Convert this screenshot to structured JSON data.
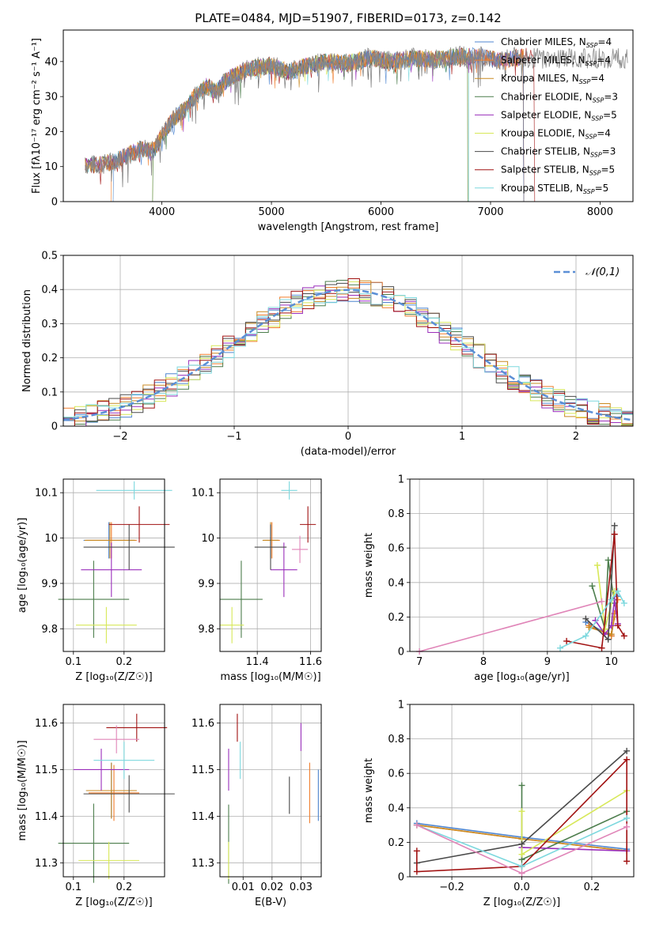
{
  "figure": {
    "title": "PLATE=0484, MJD=51907, FIBERID=0173, z=0.142"
  },
  "models": [
    {
      "name": "Chabrier MILES",
      "nssp": "4",
      "color": "#4f86d0"
    },
    {
      "name": "Salpeter MILES",
      "nssp": "4",
      "color": "#f07c2a"
    },
    {
      "name": "Kroupa MILES",
      "nssp": "4",
      "color": "#c98a22"
    },
    {
      "name": "Chabrier ELODIE",
      "nssp": "3",
      "color": "#4c7d4c"
    },
    {
      "name": "Salpeter ELODIE",
      "nssp": "5",
      "color": "#9a2fbb"
    },
    {
      "name": "Kroupa ELODIE",
      "nssp": "4",
      "color": "#d7e858"
    },
    {
      "name": "Chabrier STELIB",
      "nssp": "3",
      "color": "#4a4a4a"
    },
    {
      "name": "Salpeter STELIB",
      "nssp": "5",
      "color": "#a11212"
    },
    {
      "name": "Kroupa STELIB",
      "nssp": "5",
      "color": "#7dd8de"
    }
  ],
  "chart_data": [
    {
      "id": "spectrum",
      "type": "line",
      "xlabel": "wavelength [Angstrom, rest frame]",
      "ylabel": "Flux [fλ10⁻¹⁷ erg cm⁻² s⁻¹ A⁻¹]",
      "xlim": [
        3100,
        8300
      ],
      "ylim": [
        0,
        49
      ],
      "xticks": [
        4000,
        5000,
        6000,
        7000,
        8000
      ],
      "yticks": [
        0,
        10,
        20,
        30,
        40
      ],
      "grid": false,
      "legend": "right",
      "anchors": [
        [
          3300,
          10.5
        ],
        [
          3450,
          10.5
        ],
        [
          3600,
          12
        ],
        [
          3800,
          15
        ],
        [
          3920,
          14.5
        ],
        [
          4000,
          19
        ],
        [
          4100,
          23.5
        ],
        [
          4200,
          26
        ],
        [
          4300,
          30
        ],
        [
          4400,
          33
        ],
        [
          4500,
          31.5
        ],
        [
          4600,
          35
        ],
        [
          4800,
          38
        ],
        [
          5000,
          39
        ],
        [
          5150,
          37
        ],
        [
          5300,
          38.5
        ],
        [
          5500,
          40
        ],
        [
          5700,
          39.5
        ],
        [
          5900,
          41
        ],
        [
          6100,
          40
        ],
        [
          6300,
          41
        ],
        [
          6500,
          40.5
        ],
        [
          6700,
          41.5
        ],
        [
          6900,
          41.5
        ],
        [
          7100,
          40
        ],
        [
          7200,
          41
        ],
        [
          7300,
          41.5
        ]
      ],
      "observed_end": 8250
    },
    {
      "id": "residuals",
      "type": "histogram",
      "xlabel": "(data-model)/error",
      "ylabel": "Normed distribution",
      "xlim": [
        -2.5,
        2.5
      ],
      "ylim": [
        0,
        0.5
      ],
      "xticks": [
        -2,
        -1,
        0,
        1,
        2
      ],
      "xtick_labels": [
        "−2",
        "−1",
        "0",
        "1",
        "2"
      ],
      "yticks": [
        0,
        0.1,
        0.2,
        0.3,
        0.4,
        0.5
      ],
      "grid": true,
      "bin_width": 0.1,
      "reference_label": "𝒩(0,1)",
      "reference_color": "#5b8fd6",
      "legend": "top-right"
    },
    {
      "id": "age_vs_Z",
      "type": "errorbar",
      "xlabel": "Z [log₁₀(Z/Z☉)]",
      "ylabel": "age  [log₁₀(age/yr)]",
      "xlim": [
        0.08,
        0.28
      ],
      "ylim": [
        9.75,
        10.13
      ],
      "xticks": [
        0.1,
        0.2
      ],
      "yticks": [
        9.8,
        9.9,
        10.0,
        10.1
      ],
      "grid": true,
      "points": [
        {
          "x": 0.17,
          "y": 9.995,
          "xerr": 0.05,
          "yerr": 0.04,
          "model": 0
        },
        {
          "x": 0.175,
          "y": 9.995,
          "xerr": 0.05,
          "yerr": 0.04,
          "model": 1
        },
        {
          "x": 0.172,
          "y": 9.995,
          "xerr": 0.05,
          "yerr": 0.04,
          "model": 2
        },
        {
          "x": 0.14,
          "y": 9.865,
          "xerr": 0.07,
          "yerr": 0.085,
          "model": 3
        },
        {
          "x": 0.175,
          "y": 9.93,
          "xerr": 0.06,
          "yerr": 0.06,
          "model": 4
        },
        {
          "x": 0.165,
          "y": 9.808,
          "xerr": 0.06,
          "yerr": 0.04,
          "model": 5
        },
        {
          "x": 0.21,
          "y": 9.98,
          "xerr": 0.09,
          "yerr": 0.05,
          "model": 6
        },
        {
          "x": 0.23,
          "y": 10.03,
          "xerr": 0.06,
          "yerr": 0.04,
          "model": 7
        },
        {
          "x": 0.22,
          "y": 10.105,
          "xerr": 0.075,
          "yerr": 0.02,
          "model": 8
        }
      ]
    },
    {
      "id": "age_vs_mass",
      "type": "errorbar",
      "xlabel": "mass [log₁₀(M/M☉)]",
      "ylabel": "",
      "xlim": [
        11.26,
        11.64
      ],
      "ylim": [
        9.75,
        10.13
      ],
      "xticks": [
        11.4,
        11.6
      ],
      "yticks": [
        9.8,
        9.9,
        10.0,
        10.1
      ],
      "grid": true,
      "points": [
        {
          "x": 11.45,
          "y": 9.995,
          "xerr": 0.03,
          "yerr": 0.04,
          "model": 0
        },
        {
          "x": 11.455,
          "y": 9.995,
          "xerr": 0.03,
          "yerr": 0.04,
          "model": 1
        },
        {
          "x": 11.45,
          "y": 9.995,
          "xerr": 0.03,
          "yerr": 0.04,
          "model": 2
        },
        {
          "x": 11.34,
          "y": 9.865,
          "xerr": 0.08,
          "yerr": 0.085,
          "model": 3
        },
        {
          "x": 11.5,
          "y": 9.93,
          "xerr": 0.05,
          "yerr": 0.06,
          "model": 4
        },
        {
          "x": 11.305,
          "y": 9.808,
          "xerr": 0.045,
          "yerr": 0.04,
          "model": 5
        },
        {
          "x": 11.45,
          "y": 9.98,
          "xerr": 0.06,
          "yerr": 0.05,
          "model": 6
        },
        {
          "x": 11.59,
          "y": 10.03,
          "xerr": 0.03,
          "yerr": 0.04,
          "model": 7
        },
        {
          "x": 11.52,
          "y": 10.105,
          "xerr": 0.03,
          "yerr": 0.02,
          "model": 8
        },
        {
          "x": 11.56,
          "y": 9.975,
          "xerr": 0.03,
          "yerr": 0.03,
          "model": 4
        }
      ]
    },
    {
      "id": "weight_vs_age",
      "type": "line",
      "xlabel": "age  [log₁₀(age/yr)]",
      "ylabel": "mass weight",
      "xlim": [
        6.85,
        10.35
      ],
      "ylim": [
        0,
        1.0
      ],
      "xticks": [
        7,
        8,
        9,
        10
      ],
      "yticks": [
        0,
        0.2,
        0.4,
        0.6,
        0.8,
        1.0
      ],
      "grid": true,
      "series": [
        {
          "model": 0,
          "x": [
            9.6,
            10.0,
            10.05,
            10.1
          ],
          "y": [
            0.17,
            0.09,
            0.22,
            0.32
          ]
        },
        {
          "model": 1,
          "x": [
            9.65,
            10.0,
            10.05,
            10.1
          ],
          "y": [
            0.15,
            0.09,
            0.22,
            0.3
          ]
        },
        {
          "model": 2,
          "x": [
            9.65,
            10.0,
            10.05
          ],
          "y": [
            0.14,
            0.1,
            0.2
          ]
        },
        {
          "model": 3,
          "x": [
            9.7,
            9.9,
            9.95,
            10.05
          ],
          "y": [
            0.38,
            0.13,
            0.53,
            0.28
          ]
        },
        {
          "model": 4,
          "x": [
            9.75,
            9.9,
            10.0,
            10.05,
            10.1
          ],
          "y": [
            0.18,
            0.1,
            0.15,
            0.3,
            0.16
          ]
        },
        {
          "model": 5,
          "x": [
            9.78,
            9.9,
            10.05
          ],
          "y": [
            0.5,
            0.13,
            0.35
          ]
        },
        {
          "model": 6,
          "x": [
            9.6,
            9.95,
            10.05
          ],
          "y": [
            0.19,
            0.07,
            0.73
          ]
        },
        {
          "model": 7,
          "x": [
            9.3,
            9.85,
            10.05,
            10.1,
            10.2
          ],
          "y": [
            0.06,
            0.02,
            0.68,
            0.15,
            0.09
          ]
        },
        {
          "model": 8,
          "x": [
            9.2,
            9.6,
            10.0,
            10.1,
            10.2
          ],
          "y": [
            0.02,
            0.09,
            0.3,
            0.35,
            0.28
          ]
        },
        {
          "model": 4,
          "x": [
            7.0,
            9.85
          ],
          "y": [
            0.0,
            0.29
          ],
          "color": "#e085b8"
        }
      ]
    },
    {
      "id": "mass_vs_Z",
      "type": "errorbar",
      "xlabel": "Z [log₁₀(Z/Z☉)]",
      "ylabel": "mass [log₁₀(M/M☉)]",
      "xlim": [
        0.08,
        0.28
      ],
      "ylim": [
        11.27,
        11.64
      ],
      "xticks": [
        0.1,
        0.2
      ],
      "yticks": [
        11.3,
        11.4,
        11.5,
        11.6
      ],
      "grid": true,
      "points": [
        {
          "x": 0.175,
          "y": 11.455,
          "xerr": 0.05,
          "yerr": 0.06,
          "model": 0
        },
        {
          "x": 0.18,
          "y": 11.45,
          "xerr": 0.05,
          "yerr": 0.06,
          "model": 1
        },
        {
          "x": 0.175,
          "y": 11.455,
          "xerr": 0.05,
          "yerr": 0.06,
          "model": 2
        },
        {
          "x": 0.14,
          "y": 11.342,
          "xerr": 0.07,
          "yerr": 0.085,
          "model": 3
        },
        {
          "x": 0.155,
          "y": 11.5,
          "xerr": 0.055,
          "yerr": 0.045,
          "model": 4
        },
        {
          "x": 0.17,
          "y": 11.305,
          "xerr": 0.06,
          "yerr": 0.04,
          "model": 5
        },
        {
          "x": 0.21,
          "y": 11.448,
          "xerr": 0.09,
          "yerr": 0.04,
          "model": 6
        },
        {
          "x": 0.225,
          "y": 11.59,
          "xerr": 0.06,
          "yerr": 0.03,
          "model": 7
        },
        {
          "x": 0.2,
          "y": 11.52,
          "xerr": 0.06,
          "yerr": 0.04,
          "model": 8
        },
        {
          "x": 0.185,
          "y": 11.565,
          "xerr": 0.045,
          "yerr": 0.03,
          "model": 4
        }
      ]
    },
    {
      "id": "mass_vs_ebv",
      "type": "errorbar",
      "xlabel": "E(B-V)",
      "ylabel": "",
      "xlim": [
        0.002,
        0.037
      ],
      "ylim": [
        11.27,
        11.64
      ],
      "xticks": [
        0.01,
        0.02,
        0.03
      ],
      "yticks": [
        11.3,
        11.4,
        11.5,
        11.6
      ],
      "grid": true,
      "points": [
        {
          "x": 0.036,
          "y": 11.445,
          "xerr": 0,
          "yerr": 0.055,
          "model": 0
        },
        {
          "x": 0.033,
          "y": 11.45,
          "xerr": 0,
          "yerr": 0.065,
          "model": 1
        },
        {
          "x": 0.005,
          "y": 11.34,
          "xerr": 0,
          "yerr": 0.085,
          "model": 3
        },
        {
          "x": 0.005,
          "y": 11.5,
          "xerr": 0,
          "yerr": 0.045,
          "model": 4
        },
        {
          "x": 0.005,
          "y": 11.305,
          "xerr": 0,
          "yerr": 0.04,
          "model": 5
        },
        {
          "x": 0.026,
          "y": 11.445,
          "xerr": 0,
          "yerr": 0.04,
          "model": 6
        },
        {
          "x": 0.008,
          "y": 11.59,
          "xerr": 0,
          "yerr": 0.03,
          "model": 7
        },
        {
          "x": 0.009,
          "y": 11.52,
          "xerr": 0,
          "yerr": 0.04,
          "model": 8
        },
        {
          "x": 0.03,
          "y": 11.57,
          "xerr": 0,
          "yerr": 0.03,
          "model": 4
        }
      ]
    },
    {
      "id": "weight_vs_Z",
      "type": "line",
      "xlabel": "Z [log₁₀(Z/Z☉)]",
      "ylabel": "mass weight",
      "xlim": [
        -0.32,
        0.32
      ],
      "ylim": [
        0,
        1.0
      ],
      "xticks": [
        -0.2,
        0.0,
        0.2
      ],
      "xtick_labels": [
        "−0.2",
        "0.0",
        "0.2"
      ],
      "yticks": [
        0,
        0.2,
        0.4,
        0.6,
        0.8,
        1.0
      ],
      "grid": true,
      "series": [
        {
          "model": 0,
          "x": [
            -0.3,
            0.0,
            0.3
          ],
          "y": [
            0.31,
            0.23,
            0.16
          ]
        },
        {
          "model": 1,
          "x": [
            -0.3,
            0.0,
            0.3
          ],
          "y": [
            0.3,
            0.22,
            0.15
          ]
        },
        {
          "model": 2,
          "x": [
            -0.3,
            0.0,
            0.3
          ],
          "y": [
            0.3,
            0.22,
            0.15
          ]
        },
        {
          "model": 3,
          "x": [
            0.0,
            0.0,
            0.3
          ],
          "y": [
            0.53,
            0.1,
            0.38
          ]
        },
        {
          "model": 4,
          "x": [
            0.0,
            0.3
          ],
          "y": [
            0.17,
            0.15
          ]
        },
        {
          "model": 5,
          "x": [
            0.0,
            0.0,
            0.3
          ],
          "y": [
            0.38,
            0.13,
            0.5
          ]
        },
        {
          "model": 6,
          "x": [
            -0.3,
            0.0,
            0.3
          ],
          "y": [
            0.08,
            0.19,
            0.73
          ]
        },
        {
          "model": 7,
          "x": [
            -0.3,
            -0.3,
            0.0,
            0.3,
            0.3
          ],
          "y": [
            0.15,
            0.03,
            0.06,
            0.68,
            0.09
          ]
        },
        {
          "model": 8,
          "x": [
            -0.3,
            0.0,
            0.3
          ],
          "y": [
            0.3,
            0.06,
            0.34
          ]
        },
        {
          "model": 4,
          "x": [
            -0.3,
            0.0,
            0.3
          ],
          "y": [
            0.3,
            0.02,
            0.29
          ],
          "color": "#e085b8"
        }
      ]
    }
  ]
}
